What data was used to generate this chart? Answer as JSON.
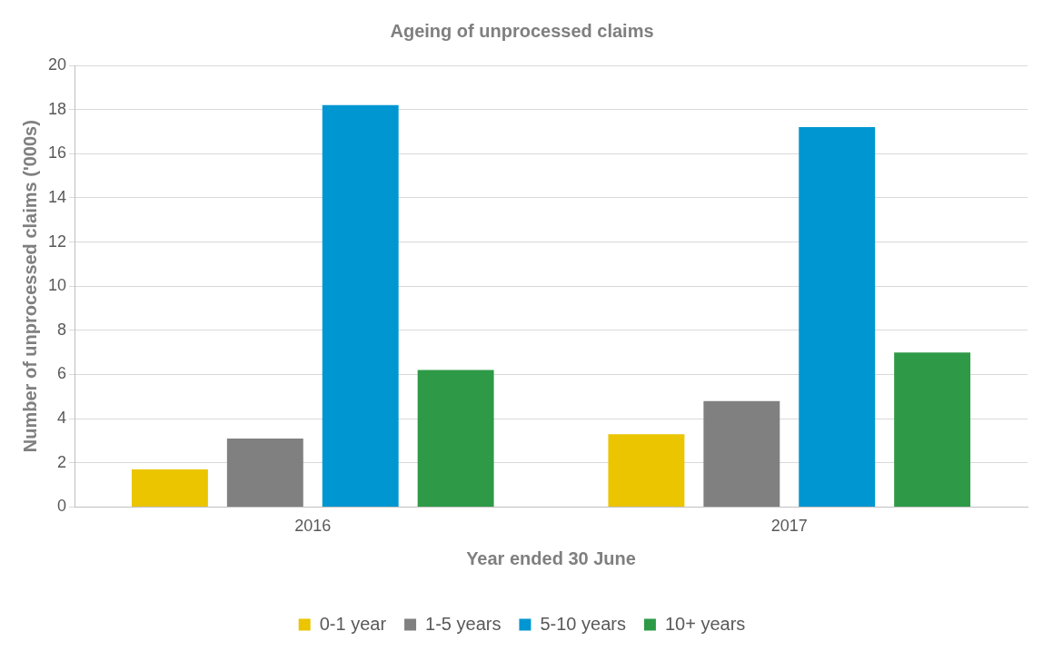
{
  "chart_data": {
    "type": "bar",
    "title": "Ageing of unprocessed claims",
    "xlabel": "Year ended 30 June",
    "ylabel": "Number of unprocessed claims ('000s)",
    "categories": [
      "2016",
      "2017"
    ],
    "series": [
      {
        "name": "0-1 year",
        "color": "#eac500",
        "values": [
          1.7,
          3.3
        ]
      },
      {
        "name": "1-5 years",
        "color": "#808080",
        "values": [
          3.1,
          4.8
        ]
      },
      {
        "name": "5-10 years",
        "color": "#0096d1",
        "values": [
          18.2,
          17.2
        ]
      },
      {
        "name": "10+ years",
        "color": "#2e9a47",
        "values": [
          6.2,
          7.0
        ]
      }
    ],
    "ylim": [
      0,
      20
    ],
    "yticks": [
      0,
      2,
      4,
      6,
      8,
      10,
      12,
      14,
      16,
      18,
      20
    ],
    "grid": "y",
    "legend": "bottom"
  }
}
